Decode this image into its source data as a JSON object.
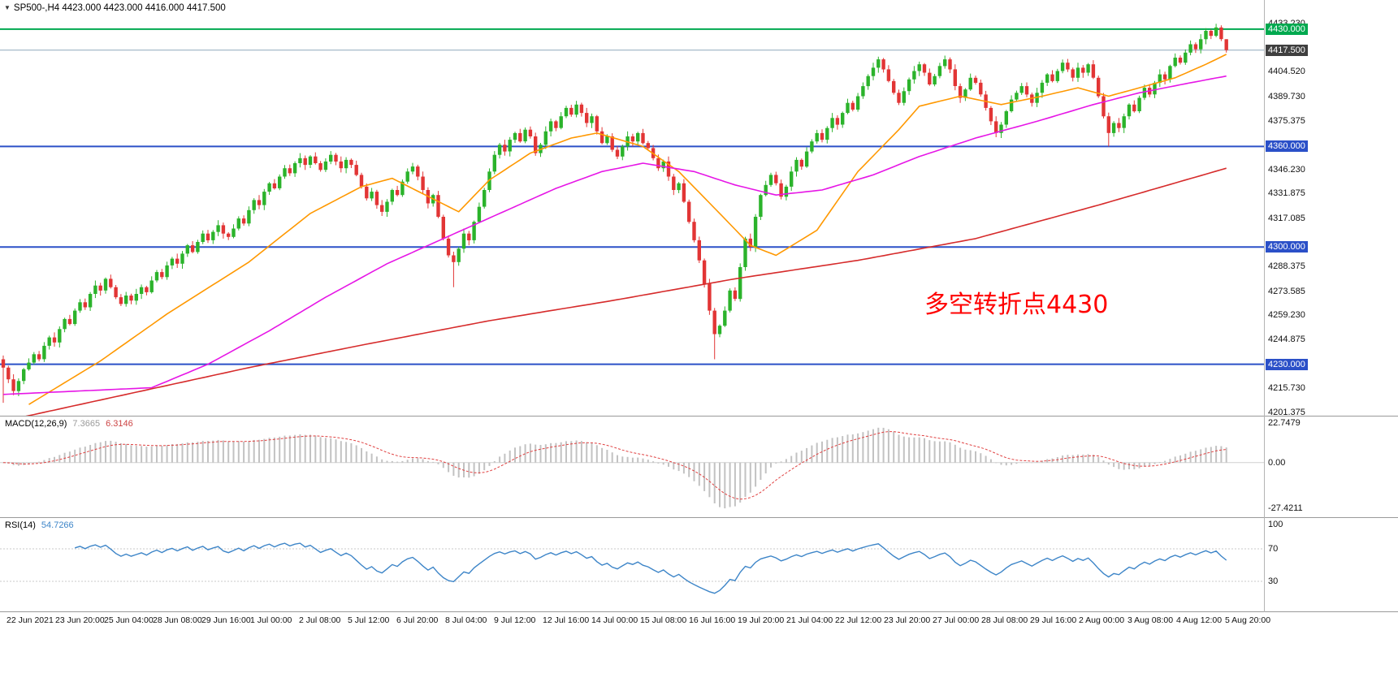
{
  "title": {
    "text": "SP500-,H4 4423.000 4423.000 4416.000 4417.500",
    "symbol": "SP500-",
    "timeframe": "H4",
    "open": "4423.000",
    "high": "4423.000",
    "low": "4416.000",
    "close": "4417.500"
  },
  "annotation": {
    "text": "多空转折点4430",
    "color": "#ff0000"
  },
  "price_axis": {
    "ticks": [
      {
        "t": "4433.230",
        "p": 4433.23
      },
      {
        "t": "4404.520",
        "p": 4404.52
      },
      {
        "t": "4389.730",
        "p": 4389.73
      },
      {
        "t": "4375.375",
        "p": 4375.375
      },
      {
        "t": "4346.230",
        "p": 4346.23
      },
      {
        "t": "4331.875",
        "p": 4331.875
      },
      {
        "t": "4317.085",
        "p": 4317.085
      },
      {
        "t": "4288.375",
        "p": 4288.375
      },
      {
        "t": "4273.585",
        "p": 4273.585
      },
      {
        "t": "4259.230",
        "p": 4259.23
      },
      {
        "t": "4244.875",
        "p": 4244.875
      },
      {
        "t": "4215.730",
        "p": 4215.73
      },
      {
        "t": "4201.375",
        "p": 4201.375
      }
    ],
    "levels": [
      {
        "t": "4430.000",
        "p": 4430.0,
        "line": "#00a94f",
        "bg": "#00a94f",
        "lw": 2
      },
      {
        "t": "4417.500",
        "p": 4417.5,
        "line": "#8fa8bc",
        "bg": "#3f3f3f",
        "lw": 1
      },
      {
        "t": "4360.000",
        "p": 4360.0,
        "line": "#2b50c8",
        "bg": "#2b50c8",
        "lw": 2
      },
      {
        "t": "4300.000",
        "p": 4300.0,
        "line": "#2b50c8",
        "bg": "#2b50c8",
        "lw": 2
      },
      {
        "t": "4230.000",
        "p": 4230.0,
        "line": "#2b50c8",
        "bg": "#2b50c8",
        "lw": 2
      }
    ]
  },
  "chart_data": {
    "type": "candlestick",
    "symbol": "SP500-",
    "timeframe": "H4",
    "current_bar": {
      "open": 4423.0,
      "high": 4423.0,
      "low": 4416.0,
      "close": 4417.5
    },
    "price_range": [
      4199.3,
      4447.4
    ],
    "first_open": 4233,
    "colors": {
      "up": "#2bb32b",
      "down": "#e23535"
    },
    "closes": [
      4228,
      4221,
      4214,
      4220,
      4227,
      4231,
      4236,
      4233,
      4241,
      4246,
      4243,
      4251,
      4257,
      4254,
      4262,
      4267,
      4264,
      4272,
      4277,
      4274,
      4281,
      4276,
      4270,
      4266,
      4271,
      4268,
      4272,
      4276,
      4273,
      4280,
      4285,
      4282,
      4289,
      4293,
      4290,
      4296,
      4301,
      4297,
      4303,
      4308,
      4304,
      4309,
      4313,
      4308,
      4306,
      4311,
      4317,
      4314,
      4322,
      4328,
      4325,
      4333,
      4338,
      4335,
      4342,
      4347,
      4344,
      4350,
      4353,
      4349,
      4354,
      4350,
      4346,
      4351,
      4355,
      4351,
      4347,
      4352,
      4349,
      4343,
      4336,
      4329,
      4333,
      4325,
      4321,
      4327,
      4334,
      4331,
      4339,
      4345,
      4348,
      4342,
      4334,
      4326,
      4331,
      4318,
      4305,
      4295,
      4291,
      4299,
      4308,
      4304,
      4315,
      4324,
      4334,
      4345,
      4355,
      4361,
      4357,
      4364,
      4368,
      4363,
      4370,
      4366,
      4356,
      4361,
      4369,
      4375,
      4371,
      4378,
      4383,
      4379,
      4385,
      4380,
      4374,
      4378,
      4369,
      4362,
      4366,
      4358,
      4354,
      4360,
      4366,
      4363,
      4368,
      4362,
      4359,
      4353,
      4347,
      4351,
      4342,
      4334,
      4338,
      4327,
      4315,
      4304,
      4292,
      4278,
      4262,
      4248,
      4253,
      4262,
      4274,
      4269,
      4288,
      4305,
      4300,
      4318,
      4331,
      4337,
      4343,
      4338,
      4330,
      4336,
      4345,
      4352,
      4348,
      4357,
      4363,
      4368,
      4364,
      4371,
      4377,
      4373,
      4380,
      4386,
      4382,
      4390,
      4396,
      4402,
      4407,
      4412,
      4406,
      4399,
      4392,
      4386,
      4393,
      4400,
      4405,
      4409,
      4404,
      4397,
      4402,
      4408,
      4412,
      4406,
      4396,
      4389,
      4394,
      4401,
      4398,
      4391,
      4383,
      4375,
      4368,
      4373,
      4381,
      4388,
      4392,
      4396,
      4391,
      4386,
      4392,
      4398,
      4403,
      4399,
      4405,
      4410,
      4406,
      4401,
      4407,
      4404,
      4409,
      4401,
      4390,
      4378,
      4368,
      4374,
      4371,
      4378,
      4385,
      4381,
      4389,
      4395,
      4391,
      4398,
      4403,
      4400,
      4408,
      4413,
      4410,
      4416,
      4421,
      4418,
      4424,
      4429,
      4426,
      4431,
      4424,
      4417.5
    ],
    "wick_cycle": [
      2.2,
      1.1,
      3.0,
      1.6,
      0.8,
      2.5,
      1.3,
      1.9
    ],
    "wick_overrides": {
      "0": {
        "low": 4207
      },
      "88": {
        "low": 4276
      },
      "139": {
        "low": 4233
      },
      "216": {
        "low": 4360
      },
      "237": {
        "high": 4433.2
      },
      "239": {
        "high": 4424,
        "low": 4416
      }
    },
    "moving_averages": [
      {
        "name": "ma-fast-orange",
        "color": "#ff9800",
        "anchors": [
          [
            5,
            4206
          ],
          [
            19,
            4232
          ],
          [
            32,
            4260
          ],
          [
            48,
            4291
          ],
          [
            60,
            4320
          ],
          [
            70,
            4336
          ],
          [
            76,
            4341
          ],
          [
            89,
            4321
          ],
          [
            95,
            4340
          ],
          [
            103,
            4356
          ],
          [
            111,
            4365
          ],
          [
            116,
            4368
          ],
          [
            125,
            4360
          ],
          [
            132,
            4345
          ],
          [
            140,
            4320
          ],
          [
            146,
            4301
          ],
          [
            151,
            4295
          ],
          [
            159,
            4310
          ],
          [
            167,
            4345
          ],
          [
            175,
            4370
          ],
          [
            179,
            4384
          ],
          [
            187,
            4390
          ],
          [
            195,
            4385
          ],
          [
            203,
            4390
          ],
          [
            210,
            4395
          ],
          [
            216,
            4390
          ],
          [
            222,
            4395
          ],
          [
            229,
            4401
          ],
          [
            235,
            4409
          ],
          [
            239,
            4415
          ]
        ]
      },
      {
        "name": "ma-mid-magenta",
        "color": "#e616e6",
        "anchors": [
          [
            0,
            4212
          ],
          [
            29,
            4216
          ],
          [
            40,
            4230
          ],
          [
            52,
            4250
          ],
          [
            63,
            4270
          ],
          [
            75,
            4290
          ],
          [
            86,
            4305
          ],
          [
            97,
            4320
          ],
          [
            108,
            4335
          ],
          [
            117,
            4345
          ],
          [
            125,
            4350
          ],
          [
            135,
            4345
          ],
          [
            143,
            4337
          ],
          [
            151,
            4331
          ],
          [
            160,
            4334
          ],
          [
            170,
            4343
          ],
          [
            179,
            4354
          ],
          [
            190,
            4365
          ],
          [
            202,
            4375
          ],
          [
            213,
            4385
          ],
          [
            222,
            4392
          ],
          [
            232,
            4398
          ],
          [
            239,
            4402
          ]
        ]
      },
      {
        "name": "ma-slow-red",
        "color": "#d62b2b",
        "anchors": [
          [
            0,
            4196
          ],
          [
            24,
            4212
          ],
          [
            48,
            4228
          ],
          [
            71,
            4242
          ],
          [
            95,
            4256
          ],
          [
            119,
            4268
          ],
          [
            143,
            4281
          ],
          [
            167,
            4292
          ],
          [
            190,
            4305
          ],
          [
            214,
            4325
          ],
          [
            239,
            4347
          ]
        ]
      }
    ],
    "indicators": {
      "macd": {
        "name": "MACD(12,26,9)",
        "value_main": "7.3665",
        "value_signal": "6.3146",
        "params": [
          12,
          26,
          9
        ],
        "axis": [
          "22.7479",
          "0.00",
          "-27.4211"
        ],
        "range": [
          -29,
          24
        ],
        "hist_color": "#c2c2c2",
        "signal_color": "#e04040"
      },
      "rsi": {
        "name": "RSI(14)",
        "value": "54.7266",
        "period": 14,
        "axis": [
          "100",
          "70",
          "30"
        ],
        "levels": [
          70,
          30
        ],
        "color": "#3d85c8"
      }
    },
    "time_labels": [
      "22 Jun 2021",
      "23 Jun 20:00",
      "25 Jun 04:00",
      "28 Jun 08:00",
      "29 Jun 16:00",
      "1 Jul 00:00",
      "2 Jul 08:00",
      "5 Jul 12:00",
      "6 Jul 20:00",
      "8 Jul 04:00",
      "9 Jul 12:00",
      "12 Jul 16:00",
      "14 Jul 00:00",
      "15 Jul 08:00",
      "16 Jul 16:00",
      "19 Jul 20:00",
      "21 Jul 04:00",
      "22 Jul 12:00",
      "23 Jul 20:00",
      "27 Jul 00:00",
      "28 Jul 08:00",
      "29 Jul 16:00",
      "2 Aug 00:00",
      "3 Aug 08:00",
      "4 Aug 12:00",
      "5 Aug 20:00"
    ]
  }
}
